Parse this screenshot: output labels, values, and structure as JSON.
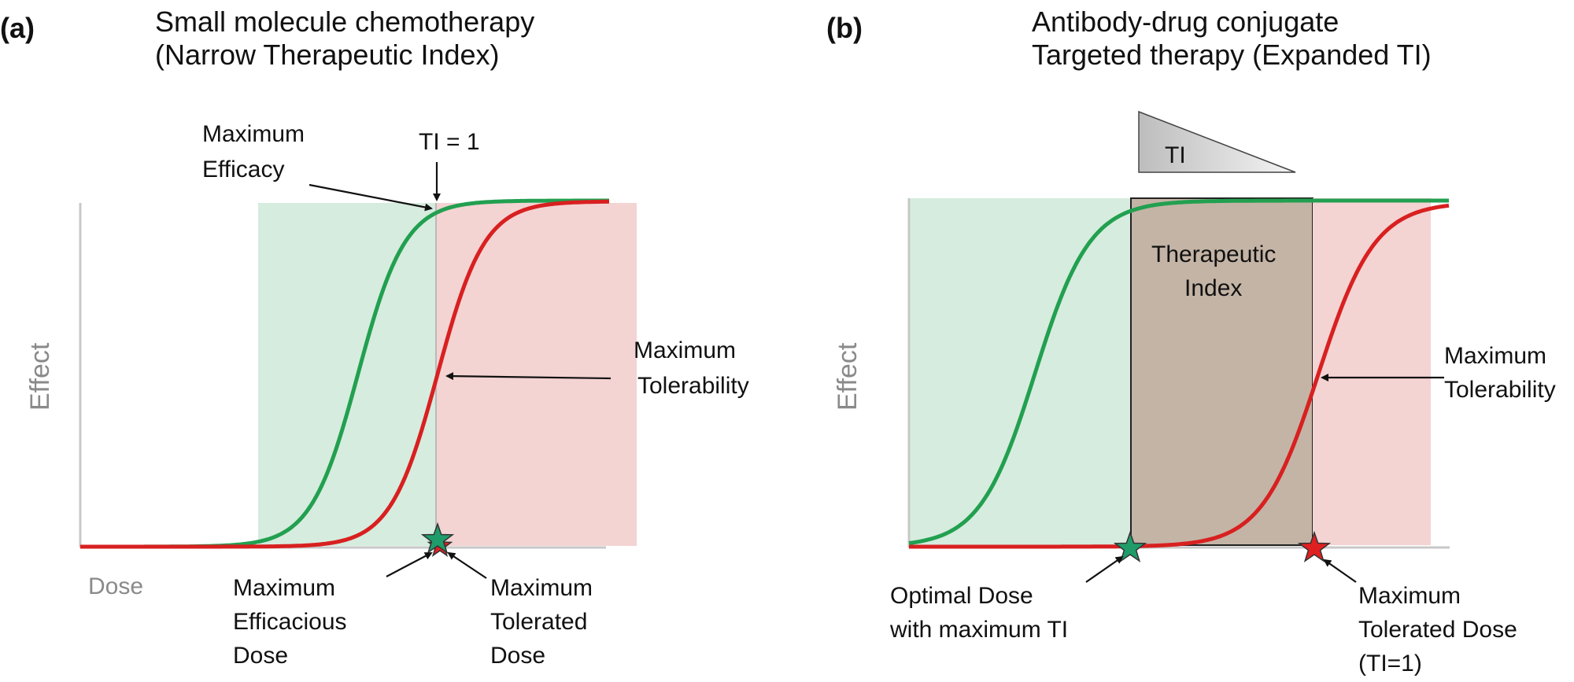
{
  "panel_a": {
    "letter": "(a)",
    "title_line1": "Small molecule chemotherapy",
    "title_line2": "(Narrow Therapeutic Index)",
    "ylabel": "Effect",
    "xlabel": "Dose",
    "label_max_efficacy_1": "Maximum",
    "label_max_efficacy_2": "Efficacy",
    "label_ti": "TI = 1",
    "label_max_tolerability_1": "Maximum",
    "label_max_tolerability_2": "Tolerability",
    "label_med_1": "Maximum",
    "label_med_2": "Efficacious",
    "label_med_3": "Dose",
    "label_mtd_1": "Maximum",
    "label_mtd_2": "Tolerated",
    "label_mtd_3": "Dose"
  },
  "panel_b": {
    "letter": "(b)",
    "title_line1": "Antibody-drug conjugate",
    "title_line2": "Targeted therapy (Expanded TI)",
    "ylabel": "Effect",
    "label_ti_wedge": "TI",
    "label_therapeutic_1": "Therapeutic",
    "label_therapeutic_2": "Index",
    "label_max_tolerability_1": "Maximum",
    "label_max_tolerability_2": "Tolerability",
    "label_optimal_1": "Optimal Dose",
    "label_optimal_2": "with maximum TI",
    "label_mtd_1": "Maximum",
    "label_mtd_2": "Tolerated Dose",
    "label_mtd_3": "(TI=1)"
  },
  "colors": {
    "efficacy_curve": "#22a050",
    "toxicity_curve": "#d82020",
    "efficacy_zone": "#d6ecde",
    "toxicity_zone": "#f4d3d3",
    "therapeutic_zone": "#c4b4a6",
    "star_efficacy": "#1f9c6a",
    "star_toxicity": "#e02020"
  }
}
